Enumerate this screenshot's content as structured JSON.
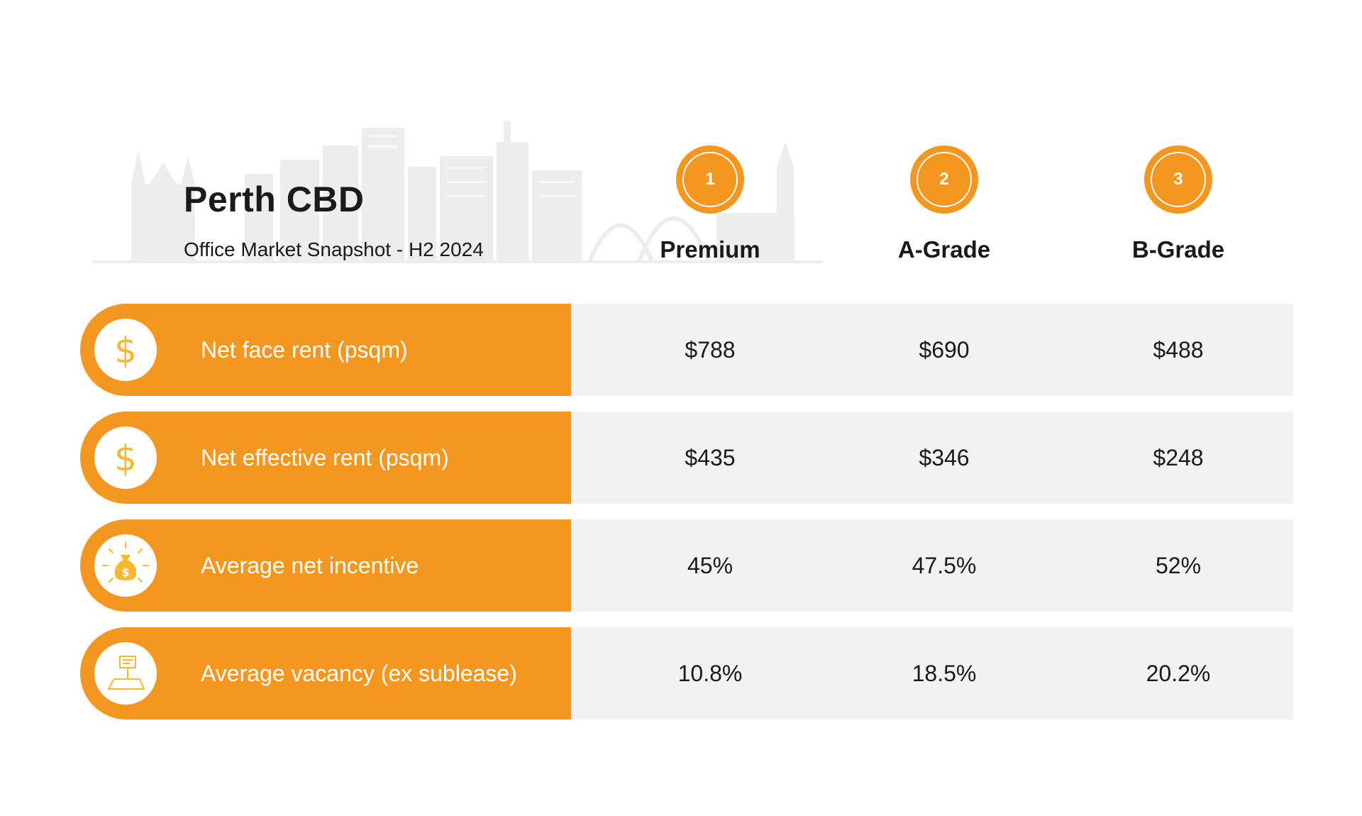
{
  "header": {
    "title": "Perth CBD",
    "subtitle": "Office Market Snapshot - H2 2024"
  },
  "columns": [
    {
      "badge": "1",
      "name": "Premium"
    },
    {
      "badge": "2",
      "name": "A-Grade"
    },
    {
      "badge": "3",
      "name": "B-Grade"
    }
  ],
  "rows": [
    {
      "label": "Net face rent (psqm)",
      "icon": "dollar-icon",
      "values": [
        "$788",
        "$690",
        "$488"
      ]
    },
    {
      "label": "Net effective rent (psqm)",
      "icon": "dollar-icon",
      "values": [
        "$435",
        "$346",
        "$248"
      ]
    },
    {
      "label": "Average net incentive",
      "icon": "money-bag-icon",
      "values": [
        "45%",
        "47.5%",
        "52%"
      ]
    },
    {
      "label": "Average vacancy (ex sublease)",
      "icon": "vacant-lot-sign-icon",
      "values": [
        "10.8%",
        "18.5%",
        "20.2%"
      ]
    }
  ],
  "colors": {
    "accent": "#f39720",
    "row_bg": "#f2f2f2",
    "icon_yellow": "#f5b82e",
    "skyline": "#ededed"
  }
}
